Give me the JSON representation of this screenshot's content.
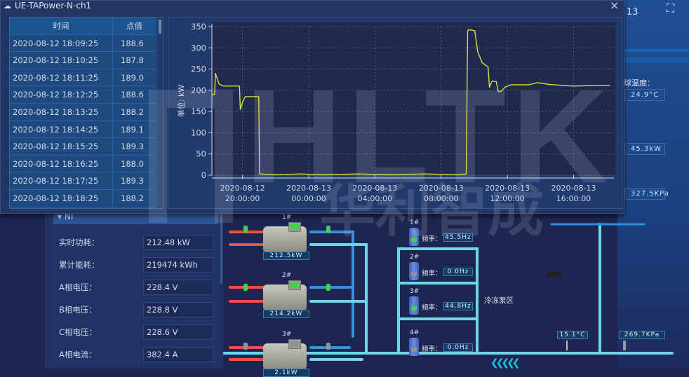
{
  "window": {
    "title": "UE-TAPower-N-ch1",
    "close": "×"
  },
  "table": {
    "headers": [
      "时间",
      "点值"
    ],
    "rows": [
      [
        "2020-08-12 18:09:25",
        "188.6"
      ],
      [
        "2020-08-12 18:10:25",
        "187.8"
      ],
      [
        "2020-08-12 18:11:25",
        "189.0"
      ],
      [
        "2020-08-12 18:12:25",
        "188.6"
      ],
      [
        "2020-08-12 18:13:25",
        "188.2"
      ],
      [
        "2020-08-12 18:14:25",
        "189.1"
      ],
      [
        "2020-08-12 18:15:25",
        "189.3"
      ],
      [
        "2020-08-12 18:16:25",
        "188.0"
      ],
      [
        "2020-08-12 18:17:25",
        "189.3"
      ],
      [
        "2020-08-12 18:18:25",
        "188.2"
      ]
    ]
  },
  "chart_data": {
    "type": "line",
    "ylabel": "单位: kW",
    "ylim": [
      0,
      350
    ],
    "yticks": [
      0,
      50,
      100,
      150,
      200,
      250,
      300,
      350
    ],
    "xticks": [
      [
        "2020-08-12",
        "20:00:00"
      ],
      [
        "2020-08-13",
        "00:00:00"
      ],
      [
        "2020-08-13",
        "04:00:00"
      ],
      [
        "2020-08-13",
        "08:00:00"
      ],
      [
        "2020-08-13",
        "12:00:00"
      ],
      [
        "2020-08-13",
        "16:00:00"
      ]
    ],
    "xtick_times": [
      "2020-08-12 20:00",
      "2020-08-13 00:00",
      "2020-08-13 04:00",
      "2020-08-13 08:00",
      "2020-08-13 12:00",
      "2020-08-13 16:00"
    ],
    "xlim": [
      "2020-08-12 18:09",
      "2020-08-13 18:11"
    ],
    "grid": true,
    "line_color": "#d4e034",
    "points": [
      [
        "2020-08-12 18:09",
        190
      ],
      [
        "2020-08-12 18:19",
        190
      ],
      [
        "2020-08-12 18:22",
        240
      ],
      [
        "2020-08-12 18:35",
        215
      ],
      [
        "2020-08-12 18:51",
        210
      ],
      [
        "2020-08-12 19:49",
        210
      ],
      [
        "2020-08-12 19:52",
        155
      ],
      [
        "2020-08-12 20:02",
        175
      ],
      [
        "2020-08-12 20:10",
        185
      ],
      [
        "2020-08-12 20:59",
        185
      ],
      [
        "2020-08-12 21:02",
        3
      ],
      [
        "2020-08-12 22:00",
        1
      ],
      [
        "2020-08-12 23:30",
        3
      ],
      [
        "2020-08-13 01:00",
        1
      ],
      [
        "2020-08-13 03:00",
        3
      ],
      [
        "2020-08-13 05:00",
        1
      ],
      [
        "2020-08-13 07:00",
        3
      ],
      [
        "2020-08-13 09:00",
        1
      ],
      [
        "2020-08-13 09:31",
        3
      ],
      [
        "2020-08-13 09:36",
        340
      ],
      [
        "2020-08-13 09:41",
        343
      ],
      [
        "2020-08-13 10:02",
        340
      ],
      [
        "2020-08-13 10:13",
        290
      ],
      [
        "2020-08-13 10:29",
        265
      ],
      [
        "2020-08-13 10:50",
        255
      ],
      [
        "2020-08-13 10:55",
        207
      ],
      [
        "2020-08-13 11:05",
        222
      ],
      [
        "2020-08-13 11:20",
        220
      ],
      [
        "2020-08-13 11:27",
        197
      ],
      [
        "2020-08-13 11:37",
        198
      ],
      [
        "2020-08-13 11:53",
        208
      ],
      [
        "2020-08-13 12:14",
        213
      ],
      [
        "2020-08-13 13:17",
        213
      ],
      [
        "2020-08-13 13:49",
        218
      ],
      [
        "2020-08-13 14:31",
        214
      ],
      [
        "2020-08-13 15:56",
        210
      ],
      [
        "2020-08-13 18:11",
        212
      ]
    ]
  },
  "panel": {
    "title": "NI",
    "rows": [
      [
        "实时功耗：",
        "212.48 kW"
      ],
      [
        "累计能耗：",
        "219474 kWh"
      ],
      [
        "A相电压：",
        "228.4 V"
      ],
      [
        "B相电压：",
        "228.8 V"
      ],
      [
        "C相电压：",
        "228.6 V"
      ],
      [
        "A相电流：",
        "382.4 A"
      ]
    ]
  },
  "chillers": [
    {
      "name": "1#",
      "power": "212.5kW",
      "status": "#3fd34a"
    },
    {
      "name": "2#",
      "power": "214.2kW",
      "status": "#3fd34a"
    },
    {
      "name": "3#",
      "power": "2.1kW",
      "status": "#8f9296"
    }
  ],
  "pumps": [
    {
      "name": "1#",
      "label": "频率：",
      "freq": "45.5Hz",
      "status": "#3fd34a"
    },
    {
      "name": "2#",
      "label": "频率：",
      "freq": "0.0Hz",
      "status": "#8f9296"
    },
    {
      "name": "3#",
      "label": "频率：",
      "freq": "44.8Hz",
      "status": "#3fd34a"
    },
    {
      "name": "4#",
      "label": "频率：",
      "freq": "0.0Hz",
      "status": "#8f9296"
    }
  ],
  "pump_zone": "冷冻泵区",
  "sensors": {
    "temp": "15.1°C",
    "pressure": "269.7KPa"
  },
  "right": {
    "date_fragment": "13",
    "label": "球温度：",
    "temp": "24.9°C",
    "power": "45.3kW",
    "pressure": "327.5KPa"
  },
  "watermark": {
    "text": "HLTK",
    "cn": "华利智成"
  }
}
